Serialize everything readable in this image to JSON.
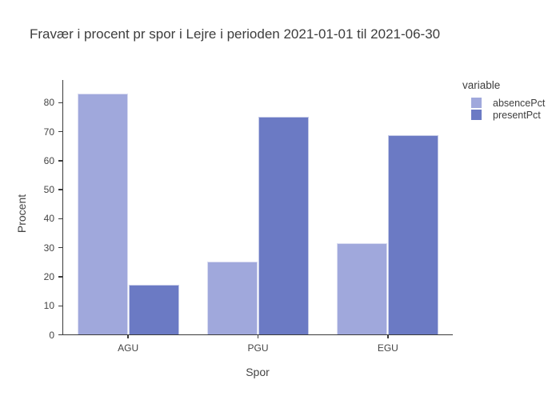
{
  "chart_data": {
    "type": "bar",
    "mode": "grouped",
    "title": "Fravær i procent pr spor i Lejre i perioden 2021-01-01 til 2021-06-30",
    "xlabel": "Spor",
    "ylabel": "Procent",
    "categories": [
      "AGU",
      "PGU",
      "EGU"
    ],
    "series": [
      {
        "name": "absencePct",
        "color": "#a0a8dc",
        "values": [
          83,
          25,
          31.4
        ]
      },
      {
        "name": "presentPct",
        "color": "#6b7ac4",
        "values": [
          17,
          75,
          68.6
        ]
      }
    ],
    "ylim": [
      0,
      87.7
    ],
    "yticks": [
      0,
      10,
      20,
      30,
      40,
      50,
      60,
      70,
      80
    ],
    "grid": false,
    "legend": {
      "title": "variable",
      "position": "right"
    }
  },
  "colors": {
    "background": "#ffffff",
    "axis_line": "#3a3a3a",
    "tick_text": "#444444",
    "title_text": "#3d3d3d",
    "bar_outline": "rgba(255,255,255,0.6)"
  }
}
